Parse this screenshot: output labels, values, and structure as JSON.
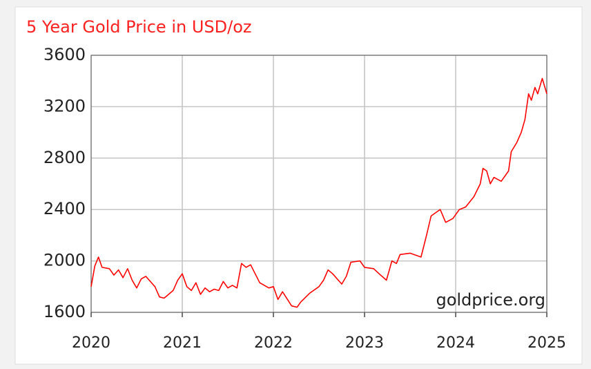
{
  "chart_data": {
    "type": "line",
    "title": "5 Year Gold Price in USD/oz",
    "annotation": "goldprice.org",
    "x": [
      2020.0,
      2020.04,
      2020.08,
      2020.12,
      2020.2,
      2020.25,
      2020.3,
      2020.35,
      2020.4,
      2020.45,
      2020.5,
      2020.55,
      2020.6,
      2020.65,
      2020.7,
      2020.75,
      2020.8,
      2020.85,
      2020.9,
      2020.95,
      2021.0,
      2021.05,
      2021.1,
      2021.15,
      2021.2,
      2021.25,
      2021.3,
      2021.35,
      2021.4,
      2021.45,
      2021.5,
      2021.55,
      2021.6,
      2021.65,
      2021.7,
      2021.75,
      2021.8,
      2021.85,
      2021.9,
      2021.95,
      2022.0,
      2022.05,
      2022.1,
      2022.2,
      2022.26,
      2022.3,
      2022.4,
      2022.5,
      2022.55,
      2022.6,
      2022.65,
      2022.75,
      2022.8,
      2022.85,
      2022.95,
      2023.0,
      2023.1,
      2023.16,
      2023.24,
      2023.3,
      2023.35,
      2023.39,
      2023.5,
      2023.62,
      2023.68,
      2023.73,
      2023.83,
      2023.89,
      2023.97,
      2024.04,
      2024.11,
      2024.2,
      2024.27,
      2024.3,
      2024.34,
      2024.38,
      2024.42,
      2024.5,
      2024.58,
      2024.61,
      2024.67,
      2024.72,
      2024.76,
      2024.8,
      2024.83,
      2024.87,
      2024.9,
      2024.95,
      2025.0
    ],
    "values": [
      1800,
      1960,
      2030,
      1950,
      1940,
      1890,
      1930,
      1870,
      1940,
      1850,
      1790,
      1860,
      1880,
      1840,
      1800,
      1720,
      1710,
      1740,
      1770,
      1850,
      1900,
      1800,
      1770,
      1830,
      1740,
      1790,
      1760,
      1780,
      1770,
      1840,
      1790,
      1810,
      1790,
      1980,
      1950,
      1970,
      1900,
      1830,
      1810,
      1790,
      1800,
      1700,
      1760,
      1650,
      1640,
      1680,
      1750,
      1800,
      1850,
      1930,
      1900,
      1820,
      1880,
      1990,
      2000,
      1950,
      1940,
      1900,
      1850,
      2000,
      1980,
      2050,
      2060,
      2030,
      2200,
      2350,
      2400,
      2300,
      2330,
      2400,
      2420,
      2500,
      2600,
      2720,
      2700,
      2600,
      2650,
      2620,
      2700,
      2850,
      2920,
      3000,
      3100,
      3300,
      3250,
      3350,
      3300,
      3420,
      3300
    ],
    "color": "#ff0000",
    "xlim": [
      2020,
      2025
    ],
    "xticks": [
      2020,
      2021,
      2022,
      2023,
      2024,
      2025
    ],
    "ylim": [
      1600,
      3600
    ],
    "yticks": [
      1600,
      2000,
      2400,
      2800,
      3200,
      3600
    ],
    "grid": true
  }
}
